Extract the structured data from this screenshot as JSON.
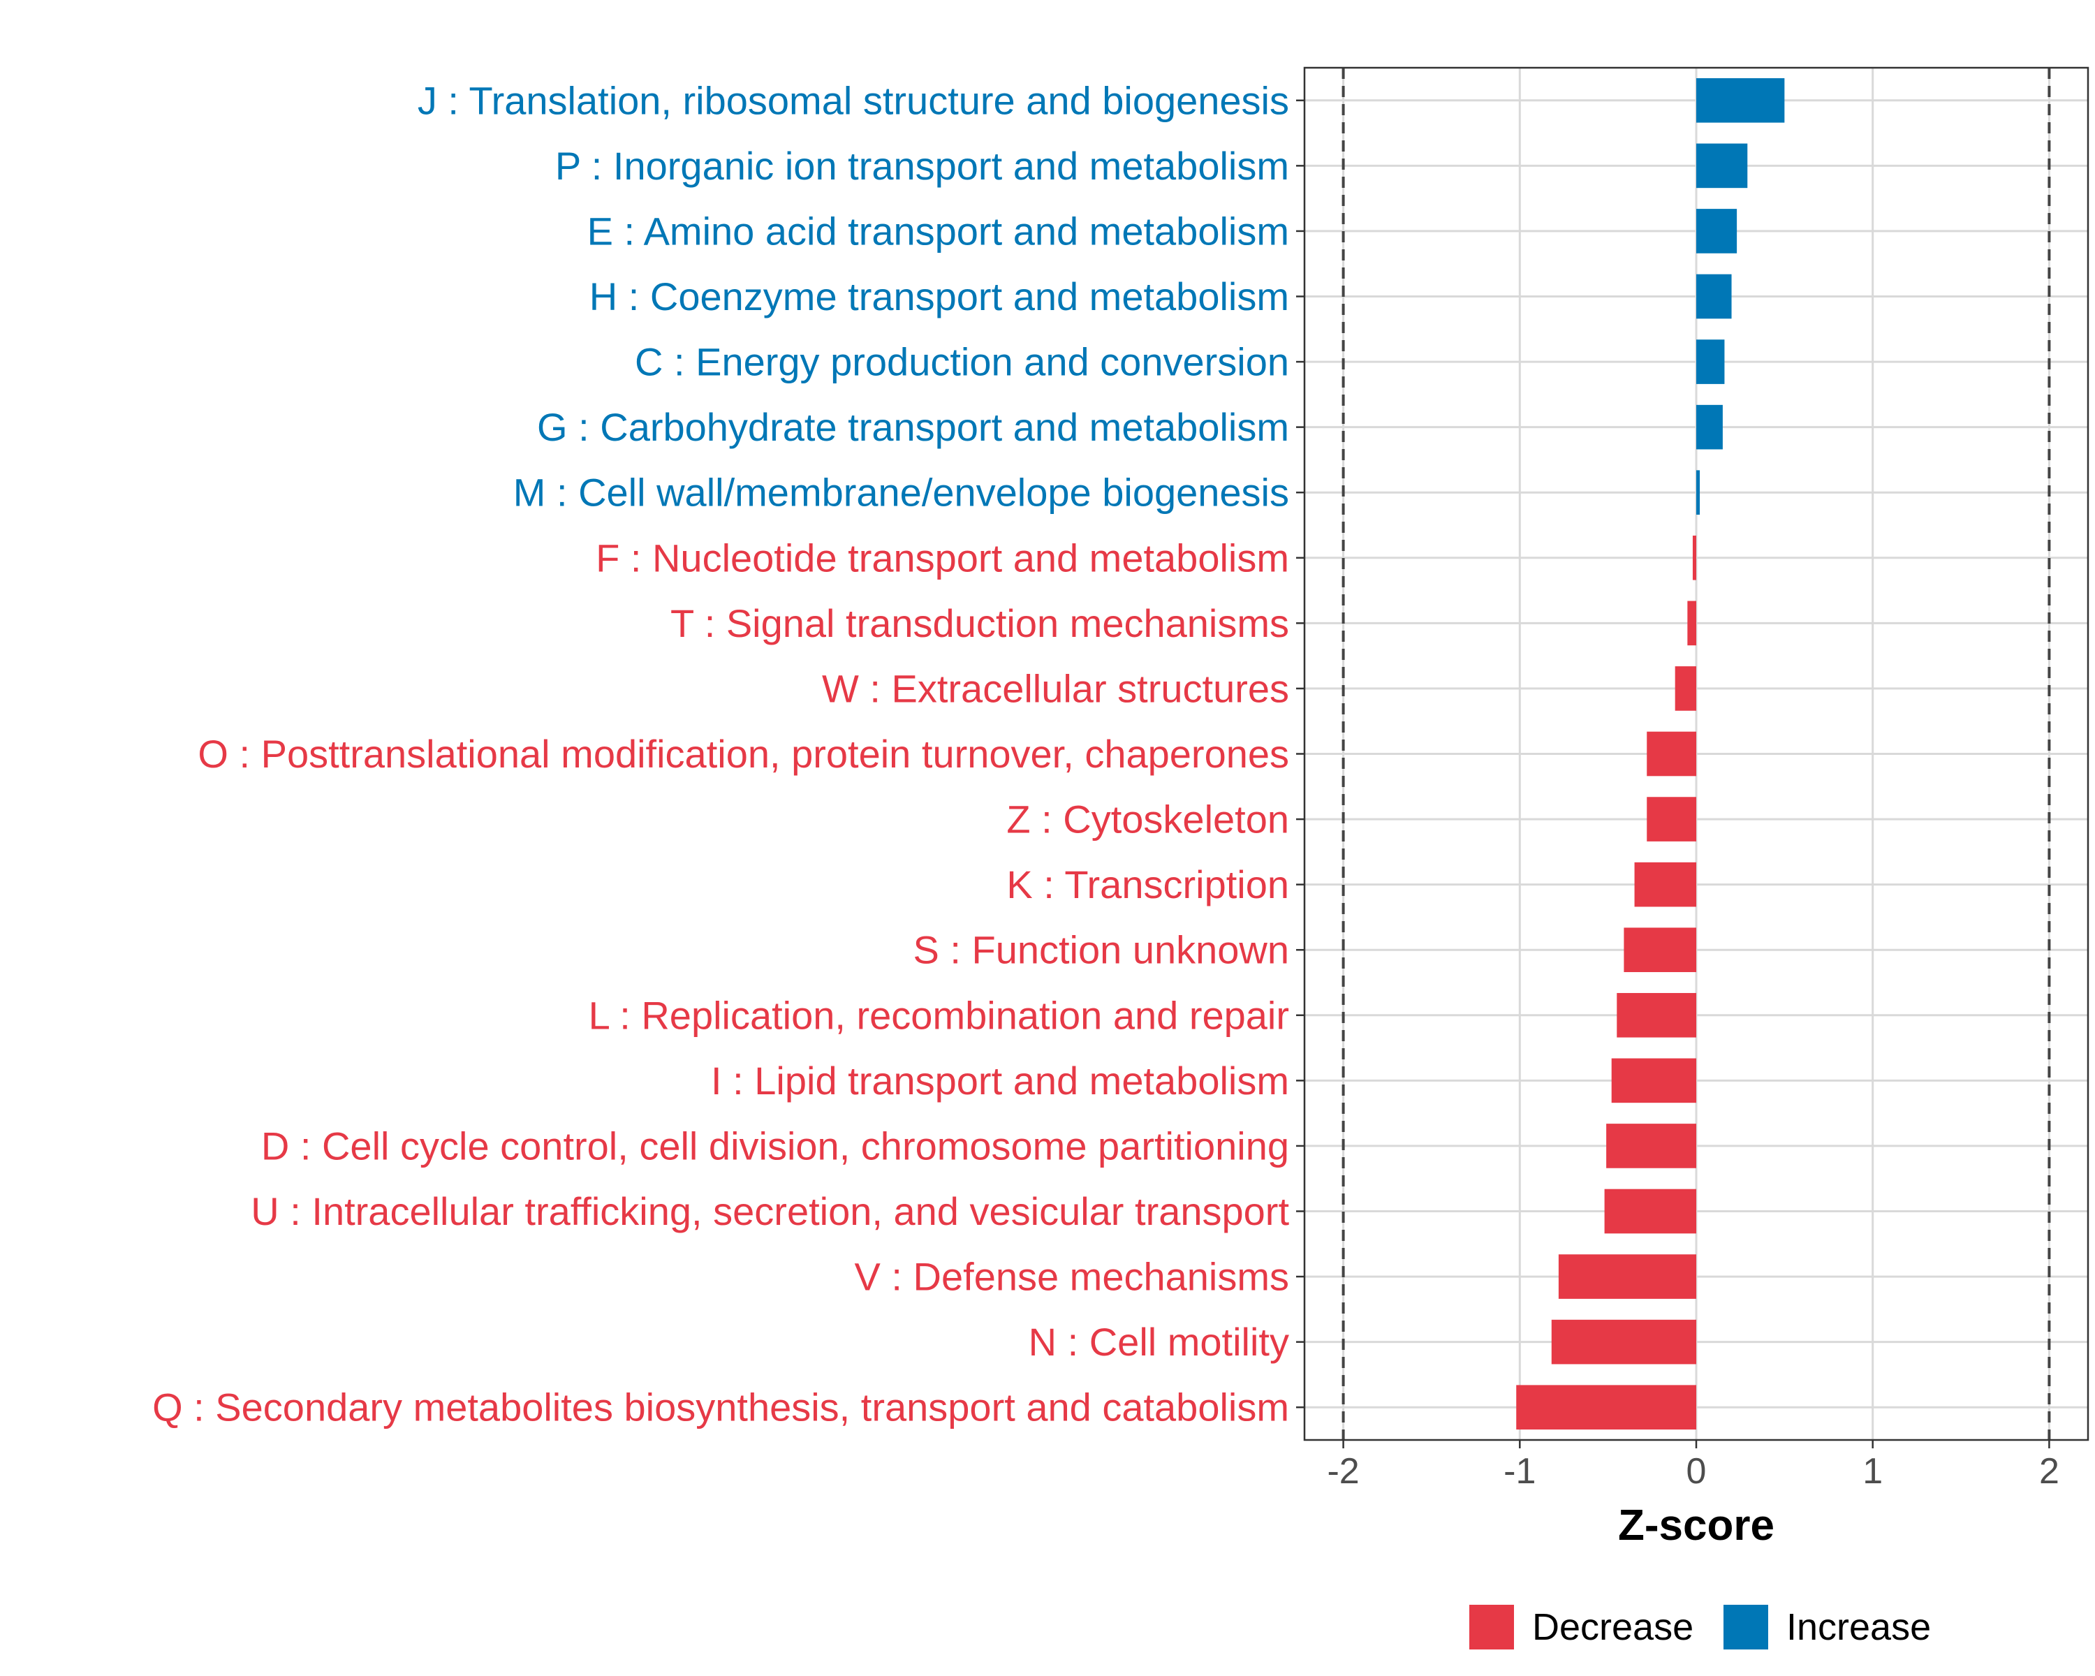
{
  "chart_data": {
    "type": "bar",
    "orientation": "horizontal",
    "categories": [
      "J : Translation, ribosomal structure and biogenesis",
      "P : Inorganic ion transport and metabolism",
      "E : Amino acid transport and metabolism",
      "H : Coenzyme transport and metabolism",
      "C : Energy production and conversion",
      "G : Carbohydrate transport and metabolism",
      "M : Cell wall/membrane/envelope biogenesis",
      "F : Nucleotide transport and metabolism",
      "T : Signal transduction mechanisms",
      "W : Extracellular structures",
      "O : Posttranslational modification, protein turnover, chaperones",
      "Z : Cytoskeleton",
      "K : Transcription",
      "S : Function unknown",
      "L : Replication, recombination and repair",
      "I : Lipid transport and metabolism",
      "D : Cell cycle control, cell division, chromosome partitioning",
      "U : Intracellular trafficking, secretion, and vesicular transport",
      "V : Defense mechanisms",
      "N : Cell motility",
      "Q : Secondary metabolites biosynthesis, transport and catabolism"
    ],
    "values": [
      0.5,
      0.29,
      0.23,
      0.2,
      0.16,
      0.15,
      0.02,
      -0.02,
      -0.05,
      -0.12,
      -0.28,
      -0.28,
      -0.35,
      -0.41,
      -0.45,
      -0.48,
      -0.51,
      -0.52,
      -0.78,
      -0.82,
      -1.02
    ],
    "groups": [
      "Increase",
      "Increase",
      "Increase",
      "Increase",
      "Increase",
      "Increase",
      "Increase",
      "Decrease",
      "Decrease",
      "Decrease",
      "Decrease",
      "Decrease",
      "Decrease",
      "Decrease",
      "Decrease",
      "Decrease",
      "Decrease",
      "Decrease",
      "Decrease",
      "Decrease",
      "Decrease"
    ],
    "xlabel": "Z-score",
    "xlim": [
      -2.22,
      2.22
    ],
    "xticks": [
      -2,
      -1,
      0,
      1,
      2
    ],
    "xtick_labels": [
      "-2",
      "-1",
      "0",
      "1",
      "2"
    ],
    "reference_lines": [
      -2,
      2
    ],
    "grid": true,
    "legend": {
      "placement": "bottom",
      "entries": [
        {
          "name": "Decrease",
          "color": "#e63946"
        },
        {
          "name": "Increase",
          "color": "#0077b6"
        }
      ]
    },
    "colors": {
      "Decrease": "#e63946",
      "Increase": "#0077b6"
    }
  }
}
